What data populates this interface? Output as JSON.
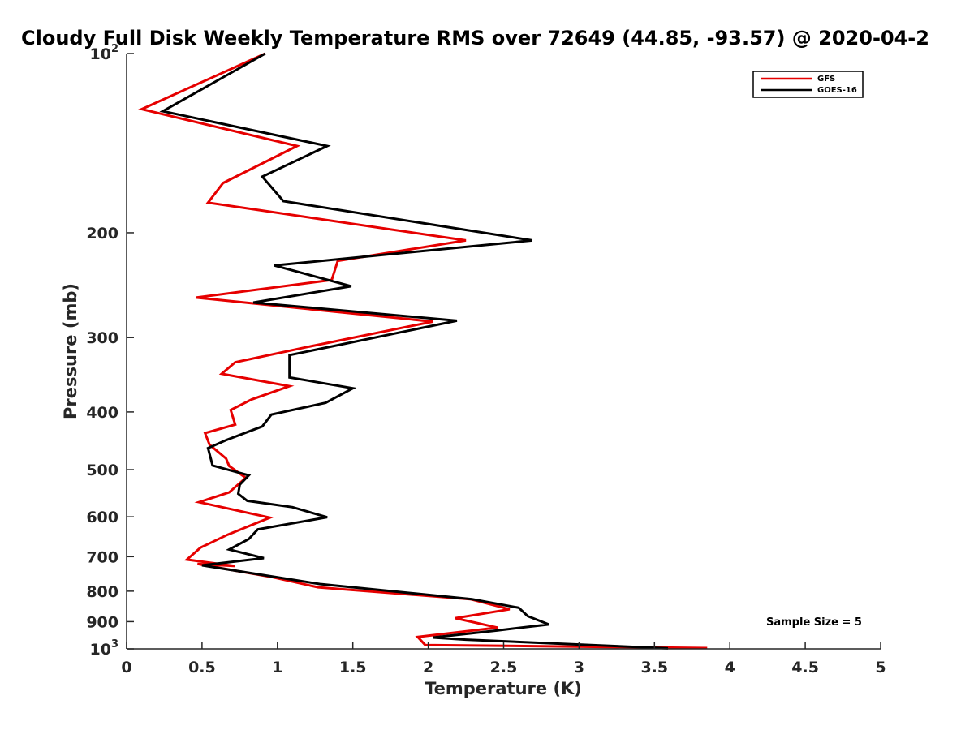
{
  "chart_data": {
    "type": "line",
    "title": "Cloudy Full Disk Weekly Temperature RMS over 72649 (44.85, -93.57) @ 2020-04-2",
    "xlabel": "Temperature (K)",
    "ylabel": "Pressure (mb)",
    "xlim": [
      0,
      5
    ],
    "ylim": [
      1000,
      100
    ],
    "yscale": "log",
    "y_reversed": true,
    "grid": false,
    "legend_position": "top-right",
    "x_ticks": [
      0,
      0.5,
      1,
      1.5,
      2,
      2.5,
      3,
      3.5,
      4,
      4.5,
      5
    ],
    "x_tick_labels": [
      "0",
      "0.5",
      "1",
      "1.5",
      "2",
      "2.5",
      "3",
      "3.5",
      "4",
      "4.5",
      "5"
    ],
    "y_ticks": [
      100,
      200,
      300,
      400,
      500,
      600,
      700,
      800,
      900,
      1000
    ],
    "y_tick_labels": [
      {
        "base": "10",
        "exp": "2"
      },
      {
        "base": "200",
        "exp": ""
      },
      {
        "base": "300",
        "exp": ""
      },
      {
        "base": "400",
        "exp": ""
      },
      {
        "base": "500",
        "exp": ""
      },
      {
        "base": "600",
        "exp": ""
      },
      {
        "base": "700",
        "exp": ""
      },
      {
        "base": "800",
        "exp": ""
      },
      {
        "base": "900",
        "exp": ""
      },
      {
        "base": "10",
        "exp": "3"
      }
    ],
    "annotation": "Sample Size = 5",
    "series": [
      {
        "name": "GFS",
        "color": "#e60000",
        "x": [
          0.92,
          0.1,
          1.13,
          0.64,
          0.54,
          2.25,
          1.4,
          1.36,
          0.46,
          2.03,
          1.2,
          0.72,
          0.63,
          1.08,
          0.83,
          0.69,
          0.72,
          0.52,
          0.55,
          0.66,
          0.68,
          0.79,
          0.68,
          0.48,
          0.95,
          0.67,
          0.49,
          0.4,
          0.72,
          0.47,
          0.97,
          1.27,
          2.28,
          2.54,
          2.18,
          2.46,
          1.93,
          1.98,
          3.85
        ],
        "y": [
          100,
          124,
          143,
          165,
          178,
          206,
          223,
          240,
          257,
          282,
          311,
          330,
          345,
          362,
          381,
          397,
          420,
          434,
          454,
          479,
          493,
          516,
          546,
          567,
          602,
          643,
          676,
          708,
          726,
          720,
          758,
          788,
          825,
          858,
          888,
          921,
          955,
          985,
          997
        ]
      },
      {
        "name": "GOES-16",
        "color": "#000000",
        "x": [
          0.92,
          0.24,
          1.33,
          0.9,
          1.04,
          2.69,
          0.98,
          1.49,
          0.84,
          2.19,
          1.08,
          1.08,
          1.5,
          1.32,
          0.96,
          0.9,
          0.66,
          0.54,
          0.57,
          0.81,
          0.75,
          0.74,
          0.8,
          1.1,
          1.33,
          0.87,
          0.81,
          0.68,
          0.91,
          0.5,
          1.28,
          2.29,
          2.6,
          2.66,
          2.8,
          2.46,
          2.03,
          2.25,
          3.59
        ],
        "y": [
          100,
          125,
          143,
          161,
          177,
          206,
          227,
          246,
          262,
          281,
          321,
          350,
          365,
          386,
          404,
          423,
          446,
          460,
          492,
          511,
          530,
          549,
          564,
          578,
          601,
          630,
          654,
          681,
          704,
          724,
          778,
          825,
          853,
          881,
          910,
          931,
          957,
          965,
          998
        ]
      }
    ]
  }
}
